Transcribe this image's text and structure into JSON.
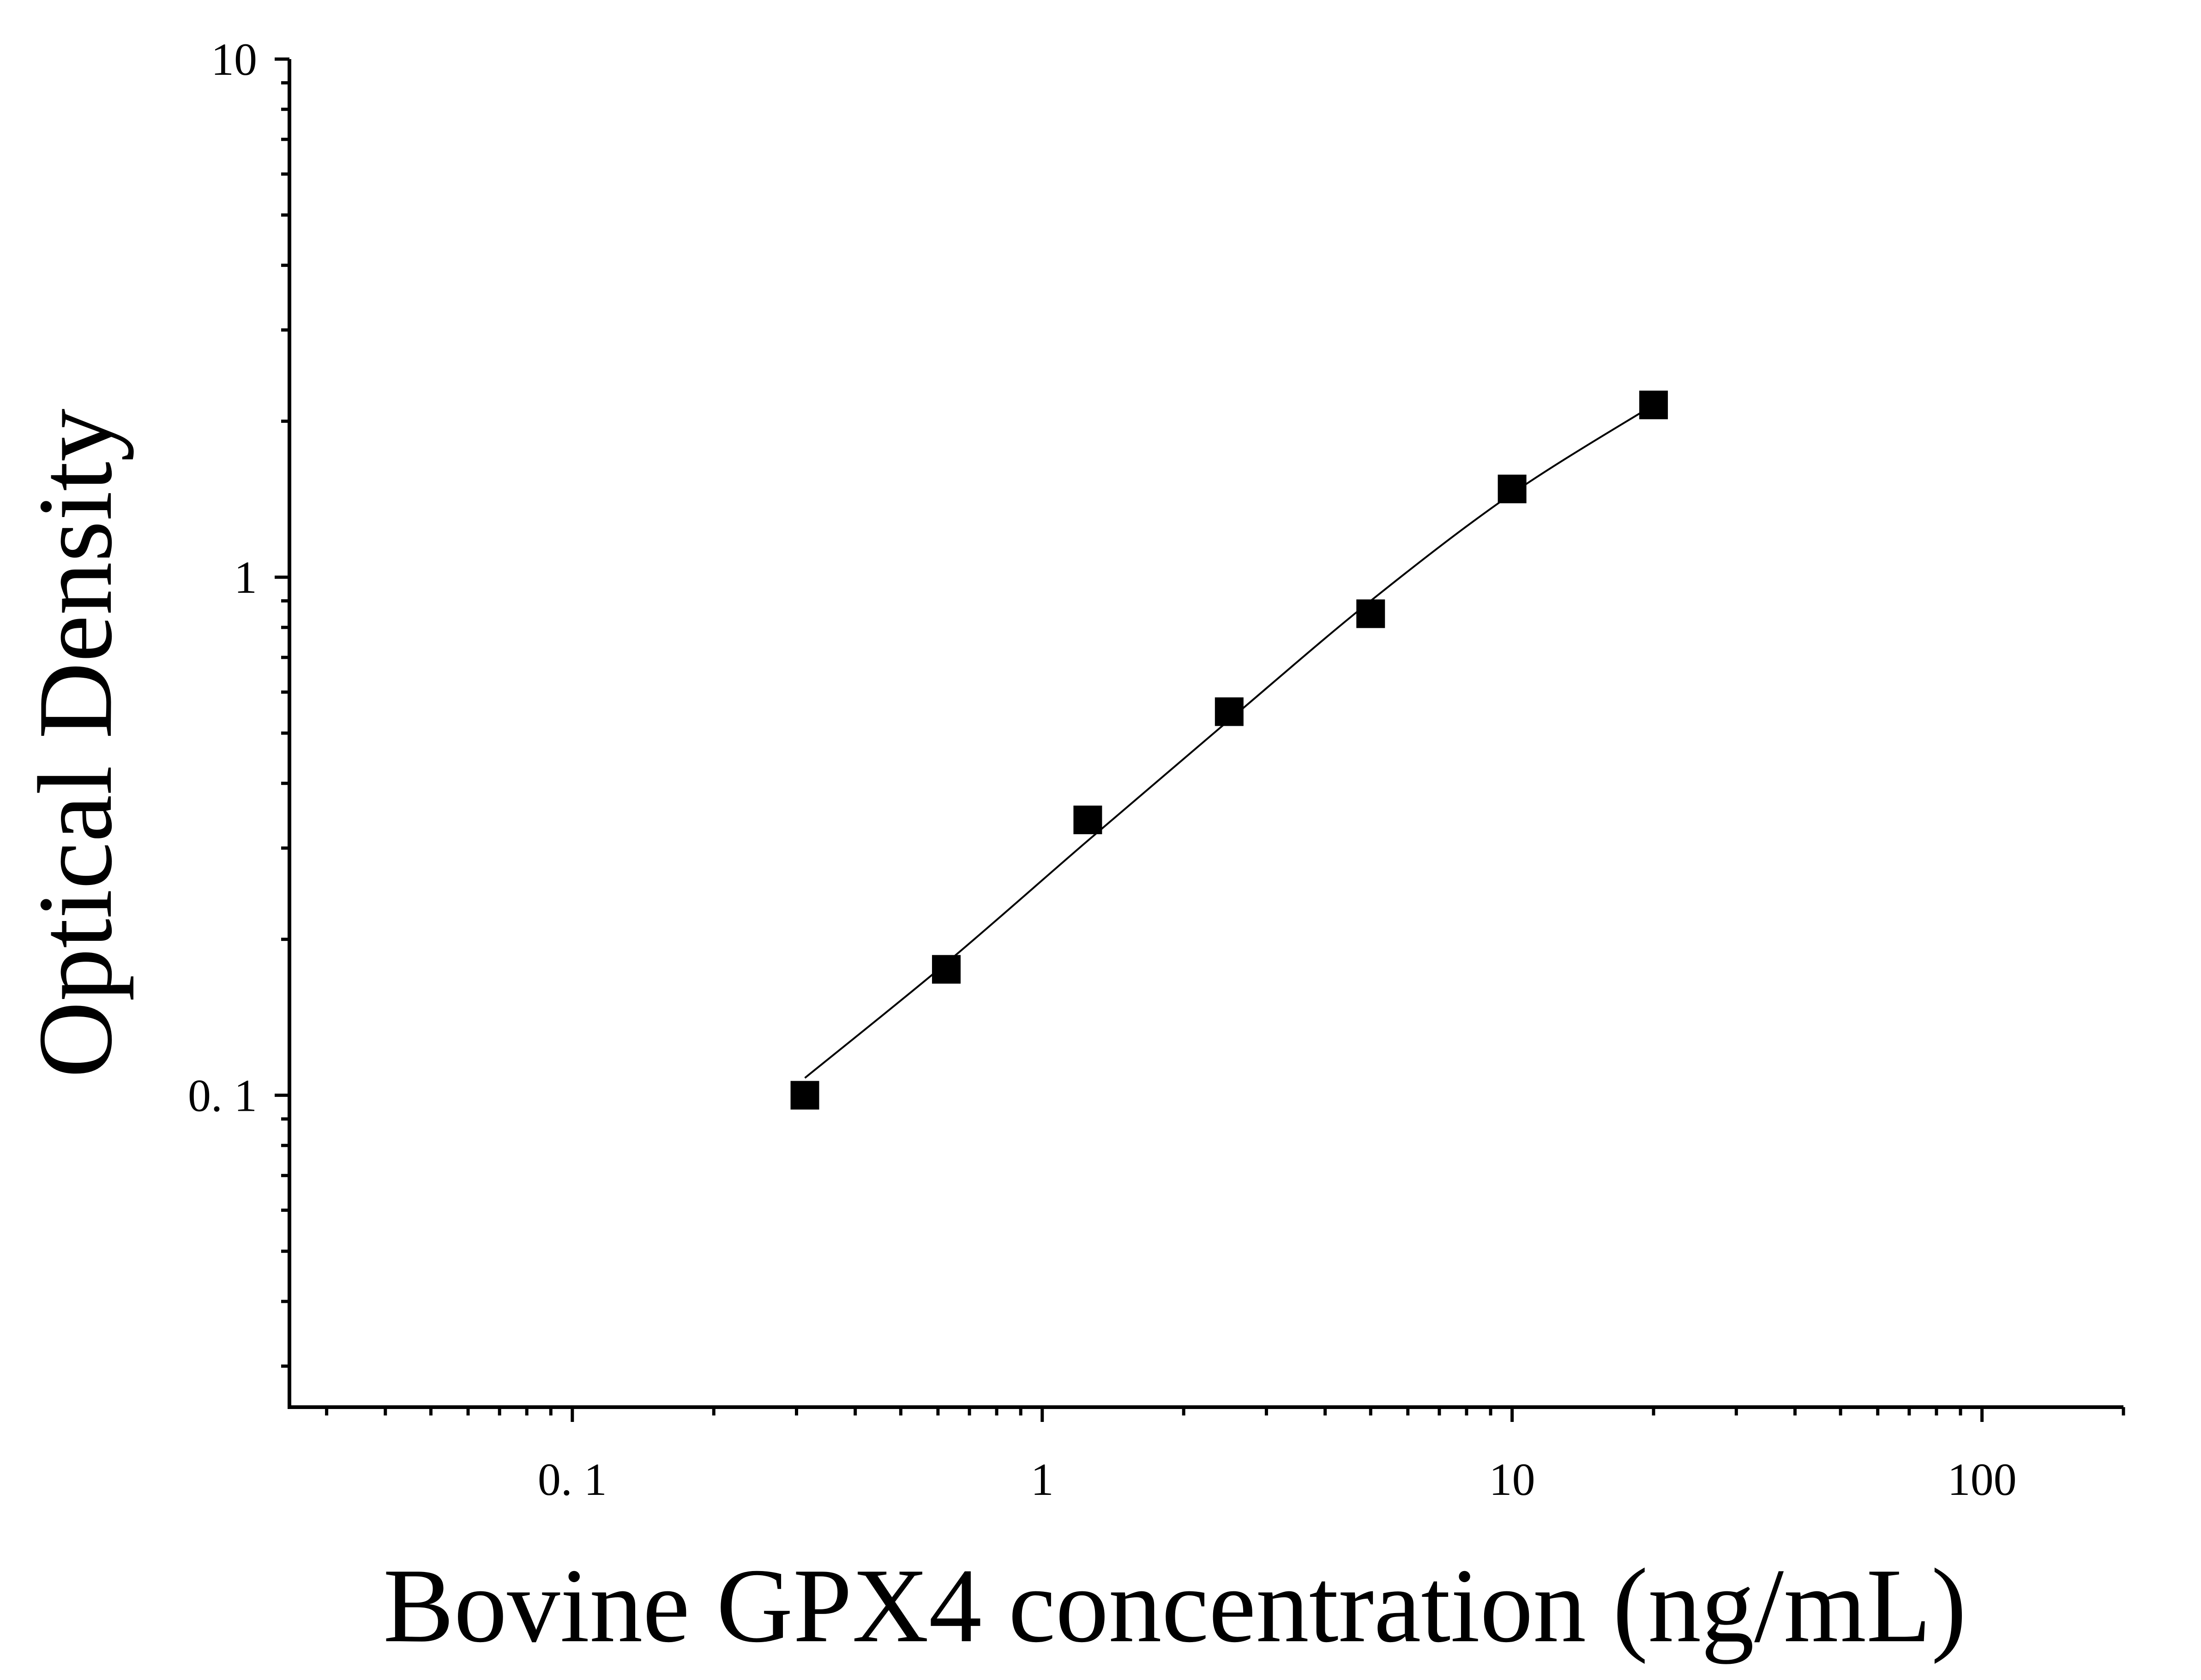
{
  "chart_data": {
    "type": "scatter",
    "xlabel": "Bovine GPX4 concentration (ng/mL)",
    "ylabel": "Optical Density",
    "xscale": "log",
    "yscale": "log",
    "xlim": [
      0.025,
      200
    ],
    "ylim": [
      0.025,
      10
    ],
    "xticks": [
      {
        "value": 0.1,
        "label": "0. 1"
      },
      {
        "value": 1,
        "label": "1"
      },
      {
        "value": 10,
        "label": "10"
      },
      {
        "value": 100,
        "label": "100"
      }
    ],
    "yticks": [
      {
        "value": 0.1,
        "label": "0. 1"
      },
      {
        "value": 1,
        "label": "1"
      },
      {
        "value": 10,
        "label": "10"
      }
    ],
    "grid": false,
    "legend": "none",
    "marker": "square",
    "color": "#000000",
    "points": [
      {
        "x": 0.3125,
        "y": 0.1
      },
      {
        "x": 0.625,
        "y": 0.175
      },
      {
        "x": 1.25,
        "y": 0.34
      },
      {
        "x": 2.5,
        "y": 0.55
      },
      {
        "x": 5,
        "y": 0.85
      },
      {
        "x": 10,
        "y": 1.48
      },
      {
        "x": 20,
        "y": 2.15
      }
    ],
    "fit_curve": {
      "type": "smooth",
      "color": "#000000",
      "points": [
        {
          "x": 0.3125,
          "y": 0.108
        },
        {
          "x": 0.625,
          "y": 0.18
        },
        {
          "x": 1.25,
          "y": 0.31
        },
        {
          "x": 2.5,
          "y": 0.53
        },
        {
          "x": 5,
          "y": 0.9
        },
        {
          "x": 10,
          "y": 1.45
        },
        {
          "x": 20,
          "y": 2.15
        }
      ]
    }
  }
}
